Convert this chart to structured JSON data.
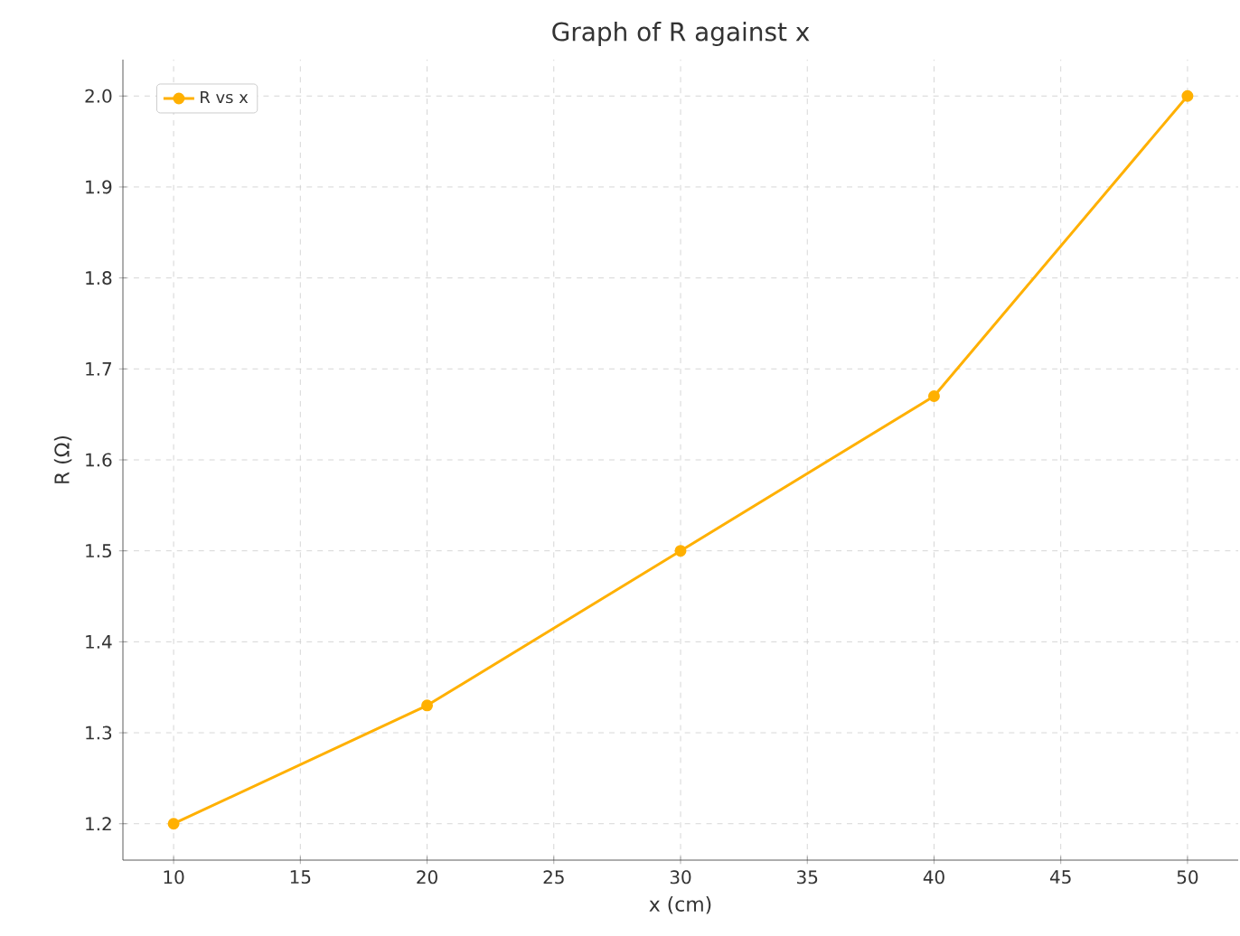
{
  "chart_data": {
    "type": "line",
    "title": "Graph of R against x",
    "xlabel": "x (cm)",
    "ylabel": "R (Ω)",
    "x": [
      10,
      20,
      30,
      40,
      50
    ],
    "series": [
      {
        "name": "R vs x",
        "color": "#ffb000",
        "values": [
          1.2,
          1.33,
          1.5,
          1.67,
          2.0
        ]
      }
    ],
    "xlim": [
      8,
      52
    ],
    "ylim": [
      1.16,
      2.04
    ],
    "xticks": [
      10,
      15,
      20,
      25,
      30,
      35,
      40,
      45,
      50
    ],
    "yticks": [
      {
        "value": 1.2,
        "label": "1.2"
      },
      {
        "value": 1.3,
        "label": "1.3"
      },
      {
        "value": 1.4,
        "label": "1.4"
      },
      {
        "value": 1.5,
        "label": "1.5"
      },
      {
        "value": 1.6,
        "label": "1.6"
      },
      {
        "value": 1.7,
        "label": "1.7"
      },
      {
        "value": 1.8,
        "label": "1.8"
      },
      {
        "value": 1.9,
        "label": "1.9"
      },
      {
        "value": 2.0,
        "label": "2.0"
      }
    ],
    "grid": true,
    "legend": "top left",
    "marker": "circle",
    "line_style": "solid"
  }
}
